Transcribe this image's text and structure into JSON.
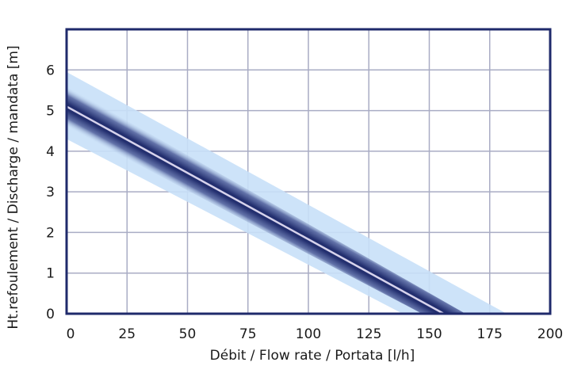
{
  "chart_data": {
    "type": "line",
    "title": "",
    "xlabel": "Débit / Flow rate / Portata [l/h]",
    "ylabel": "Ht.refoulement / Discharge / mandata [m]",
    "xlim": [
      0,
      200
    ],
    "ylim": [
      0,
      7
    ],
    "xticks": [
      0,
      25,
      50,
      75,
      100,
      125,
      150,
      175,
      200
    ],
    "yticks": [
      0,
      1,
      2,
      3,
      4,
      5,
      6
    ],
    "grid": true,
    "series": [
      {
        "x": [
          0,
          156
        ],
        "y": [
          5.1,
          0
        ],
        "band": {
          "inner": {
            "upper": [
              [
                0,
                5.6
              ],
              [
                165,
                0
              ]
            ],
            "lower": [
              [
                0,
                4.6
              ],
              [
                147,
                0
              ]
            ]
          },
          "outer": {
            "upper": [
              [
                0,
                5.95
              ],
              [
                182,
                0
              ]
            ],
            "lower": [
              [
                0,
                4.3
              ],
              [
                139,
                0
              ]
            ]
          }
        }
      }
    ],
    "colors": {
      "frame": "#1f2a6b",
      "grid": "#a9acc4",
      "band_outer": "#c8e0f8",
      "band_mid": "#3f4d8e",
      "band_core": "#232f6f",
      "center_line": "#d7d3ec"
    }
  }
}
